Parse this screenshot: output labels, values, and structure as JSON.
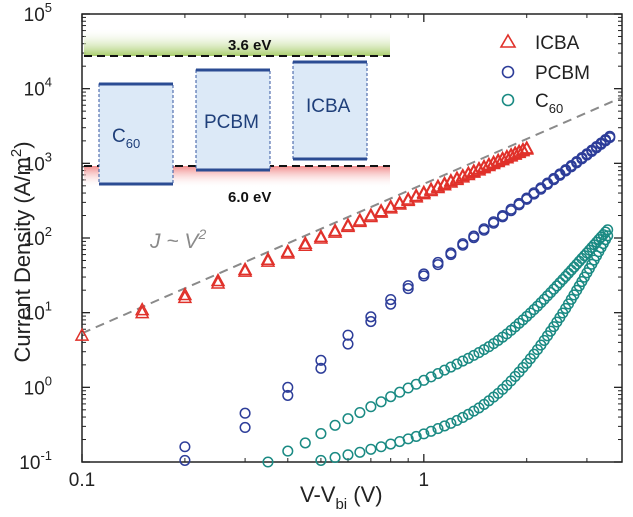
{
  "chart_data": {
    "type": "scatter",
    "xscale": "log",
    "yscale": "log",
    "xlim": [
      0.1,
      3.8
    ],
    "ylim": [
      0.1,
      100000
    ],
    "xlabel_main": "V-V",
    "xlabel_sub": "bi",
    "xlabel_tail": " (V)",
    "ylabel_main": "Current Density (A/m",
    "ylabel_sup": "2",
    "ylabel_tail": ")",
    "x_ticks": [
      {
        "value": 0.1,
        "label": "0.1"
      },
      {
        "value": 1,
        "label": "1"
      }
    ],
    "y_ticks": [
      {
        "value": 0.1,
        "base": "10",
        "exp": "-1"
      },
      {
        "value": 1,
        "base": "10",
        "exp": "0"
      },
      {
        "value": 10,
        "base": "10",
        "exp": "1"
      },
      {
        "value": 100,
        "base": "10",
        "exp": "2"
      },
      {
        "value": 1000,
        "base": "10",
        "exp": "3"
      },
      {
        "value": 10000,
        "base": "10",
        "exp": "4"
      },
      {
        "value": 100000,
        "base": "10",
        "exp": "5"
      }
    ],
    "legend_position": "top-right",
    "series": [
      {
        "name": "ICBA",
        "name_sub": "",
        "marker": "triangle",
        "color": "#e0312a",
        "points": [
          [
            0.1,
            5.0
          ],
          [
            0.15,
            11.0
          ],
          [
            0.15,
            10.0
          ],
          [
            0.2,
            17.5
          ],
          [
            0.2,
            16.0
          ],
          [
            0.25,
            27.0
          ],
          [
            0.25,
            25.0
          ],
          [
            0.3,
            38.0
          ],
          [
            0.3,
            36.0
          ],
          [
            0.35,
            52.0
          ],
          [
            0.35,
            49.0
          ],
          [
            0.4,
            66.0
          ],
          [
            0.4,
            63.0
          ],
          [
            0.45,
            85.0
          ],
          [
            0.45,
            80.0
          ],
          [
            0.5,
            105.0
          ],
          [
            0.5,
            100.0
          ],
          [
            0.55,
            126.0
          ],
          [
            0.55,
            120.0
          ],
          [
            0.6,
            150.0
          ],
          [
            0.6,
            143.0
          ],
          [
            0.65,
            174.0
          ],
          [
            0.65,
            167.0
          ],
          [
            0.7,
            203.0
          ],
          [
            0.7,
            194.0
          ],
          [
            0.75,
            232.0
          ],
          [
            0.75,
            222.0
          ],
          [
            0.8,
            264.0
          ],
          [
            0.8,
            253.0
          ],
          [
            0.85,
            298.0
          ],
          [
            0.85,
            285.0
          ],
          [
            0.9,
            333.0
          ],
          [
            0.9,
            319.0
          ],
          [
            0.95,
            371.0
          ],
          [
            0.95,
            355.0
          ],
          [
            1.0,
            410.0
          ],
          [
            1.0,
            393.0
          ],
          [
            1.05,
            452.0
          ],
          [
            1.05,
            433.0
          ],
          [
            1.1,
            495.0
          ],
          [
            1.1,
            474.0
          ],
          [
            1.15,
            540.0
          ],
          [
            1.15,
            517.0
          ],
          [
            1.2,
            587.0
          ],
          [
            1.2,
            563.0
          ],
          [
            1.25,
            636.0
          ],
          [
            1.25,
            610.0
          ],
          [
            1.3,
            687.0
          ],
          [
            1.3,
            659.0
          ],
          [
            1.35,
            740.0
          ],
          [
            1.35,
            710.0
          ],
          [
            1.4,
            795.0
          ],
          [
            1.4,
            763.0
          ],
          [
            1.45,
            852.0
          ],
          [
            1.45,
            818.0
          ],
          [
            1.5,
            911.0
          ],
          [
            1.5,
            875.0
          ],
          [
            1.55,
            972.0
          ],
          [
            1.55,
            934.0
          ],
          [
            1.6,
            1035.0
          ],
          [
            1.6,
            995.0
          ],
          [
            1.65,
            1100.0
          ],
          [
            1.65,
            1058.0
          ],
          [
            1.7,
            1167.0
          ],
          [
            1.7,
            1123.0
          ],
          [
            1.75,
            1236.0
          ],
          [
            1.75,
            1190.0
          ],
          [
            1.8,
            1307.0
          ],
          [
            1.8,
            1259.0
          ],
          [
            1.85,
            1380.0
          ],
          [
            1.85,
            1330.0
          ],
          [
            1.9,
            1455.0
          ],
          [
            1.9,
            1402.0
          ],
          [
            1.95,
            1532.0
          ],
          [
            1.95,
            1477.0
          ],
          [
            2.0,
            1610.0
          ],
          [
            2.0,
            1553.0
          ]
        ]
      },
      {
        "name": "PCBM",
        "name_sub": "",
        "marker": "circle",
        "color": "#2d3d99",
        "points": [
          [
            0.2,
            0.16
          ],
          [
            0.2,
            0.105
          ],
          [
            0.3,
            0.45
          ],
          [
            0.3,
            0.29
          ],
          [
            0.4,
            1.0
          ],
          [
            0.4,
            0.78
          ],
          [
            0.5,
            2.3
          ],
          [
            0.5,
            1.8
          ],
          [
            0.6,
            5.0
          ],
          [
            0.6,
            3.8
          ],
          [
            0.7,
            8.8
          ],
          [
            0.7,
            7.6
          ],
          [
            0.8,
            15.0
          ],
          [
            0.8,
            13.0
          ],
          [
            0.9,
            23.0
          ],
          [
            0.9,
            21.0
          ],
          [
            1.0,
            33.0
          ],
          [
            1.0,
            31.0
          ],
          [
            1.1,
            47.0
          ],
          [
            1.1,
            44.0
          ],
          [
            1.2,
            63.0
          ],
          [
            1.2,
            60.0
          ],
          [
            1.3,
            84.0
          ],
          [
            1.3,
            80.0
          ],
          [
            1.4,
            106.0
          ],
          [
            1.4,
            101.0
          ],
          [
            1.5,
            133.0
          ],
          [
            1.5,
            127.0
          ],
          [
            1.6,
            165.0
          ],
          [
            1.6,
            158.0
          ],
          [
            1.7,
            200.0
          ],
          [
            1.7,
            192.0
          ],
          [
            1.8,
            243.0
          ],
          [
            1.8,
            232.0
          ],
          [
            1.9,
            290.0
          ],
          [
            1.9,
            278.0
          ],
          [
            2.0,
            343.0
          ],
          [
            2.0,
            329.0
          ],
          [
            2.1,
            403.0
          ],
          [
            2.1,
            387.0
          ],
          [
            2.2,
            470.0
          ],
          [
            2.2,
            451.0
          ],
          [
            2.3,
            545.0
          ],
          [
            2.3,
            523.0
          ],
          [
            2.4,
            628.0
          ],
          [
            2.4,
            603.0
          ],
          [
            2.5,
            720.0
          ],
          [
            2.5,
            692.0
          ],
          [
            2.6,
            822.0
          ],
          [
            2.6,
            790.0
          ],
          [
            2.7,
            934.0
          ],
          [
            2.7,
            898.0
          ],
          [
            2.8,
            1058.0
          ],
          [
            2.8,
            1017.0
          ],
          [
            2.9,
            1193.0
          ],
          [
            2.9,
            1147.0
          ],
          [
            3.0,
            1340.0
          ],
          [
            3.0,
            1290.0
          ],
          [
            3.1,
            1500.0
          ],
          [
            3.1,
            1445.0
          ],
          [
            3.2,
            1680.0
          ],
          [
            3.2,
            1615.0
          ],
          [
            3.3,
            1870.0
          ],
          [
            3.3,
            1800.0
          ],
          [
            3.4,
            2080.0
          ],
          [
            3.4,
            2000.0
          ],
          [
            3.5,
            2300.0
          ],
          [
            3.5,
            2210.0
          ]
        ]
      },
      {
        "name": "C",
        "name_sub": "60",
        "marker": "circle",
        "color": "#1a8a83",
        "points": [
          [
            0.35,
            0.1
          ],
          [
            0.4,
            0.14
          ],
          [
            0.45,
            0.18
          ],
          [
            0.5,
            0.24
          ],
          [
            0.55,
            0.31
          ],
          [
            0.6,
            0.38
          ],
          [
            0.65,
            0.46
          ],
          [
            0.7,
            0.55
          ],
          [
            0.75,
            0.64
          ],
          [
            0.8,
            0.75
          ],
          [
            0.85,
            0.86
          ],
          [
            0.9,
            0.98
          ],
          [
            0.95,
            1.1
          ],
          [
            1.0,
            1.24
          ],
          [
            1.05,
            1.38
          ],
          [
            1.1,
            1.53
          ],
          [
            1.15,
            1.7
          ],
          [
            1.2,
            1.87
          ],
          [
            1.25,
            2.05
          ],
          [
            1.3,
            2.25
          ],
          [
            1.35,
            2.45
          ],
          [
            1.4,
            2.68
          ],
          [
            1.45,
            2.92
          ],
          [
            1.5,
            3.2
          ],
          [
            1.55,
            3.5
          ],
          [
            1.6,
            3.85
          ],
          [
            1.65,
            4.25
          ],
          [
            1.7,
            4.7
          ],
          [
            1.75,
            5.2
          ],
          [
            1.8,
            5.8
          ],
          [
            1.85,
            6.45
          ],
          [
            1.9,
            7.2
          ],
          [
            1.95,
            8.0
          ],
          [
            2.0,
            8.9
          ],
          [
            2.05,
            9.9
          ],
          [
            2.1,
            11.0
          ],
          [
            2.15,
            12.2
          ],
          [
            2.2,
            13.6
          ],
          [
            2.25,
            15.1
          ],
          [
            2.3,
            16.8
          ],
          [
            2.35,
            18.6
          ],
          [
            2.4,
            20.6
          ],
          [
            2.45,
            22.8
          ],
          [
            2.5,
            25.2
          ],
          [
            2.55,
            27.8
          ],
          [
            2.6,
            30.6
          ],
          [
            2.65,
            33.7
          ],
          [
            2.7,
            37.0
          ],
          [
            2.75,
            40.6
          ],
          [
            2.8,
            44.5
          ],
          [
            2.85,
            48.7
          ],
          [
            2.9,
            53.2
          ],
          [
            2.95,
            58.0
          ],
          [
            3.0,
            63.2
          ],
          [
            3.05,
            68.8
          ],
          [
            3.1,
            74.8
          ],
          [
            3.15,
            81.2
          ],
          [
            3.2,
            88.0
          ],
          [
            3.25,
            95.3
          ],
          [
            3.3,
            103.0
          ],
          [
            3.35,
            111.0
          ],
          [
            3.4,
            120.0
          ],
          [
            3.45,
            129.0
          ],
          [
            0.5,
            0.105
          ],
          [
            0.55,
            0.115
          ],
          [
            0.6,
            0.125
          ],
          [
            0.65,
            0.135
          ],
          [
            0.7,
            0.148
          ],
          [
            0.75,
            0.16
          ],
          [
            0.8,
            0.174
          ],
          [
            0.85,
            0.188
          ],
          [
            0.9,
            0.204
          ],
          [
            0.95,
            0.22
          ],
          [
            1.0,
            0.238
          ],
          [
            1.05,
            0.258
          ],
          [
            1.1,
            0.28
          ],
          [
            1.15,
            0.304
          ],
          [
            1.2,
            0.33
          ],
          [
            1.25,
            0.36
          ],
          [
            1.3,
            0.395
          ],
          [
            1.35,
            0.435
          ],
          [
            1.4,
            0.48
          ],
          [
            1.45,
            0.53
          ],
          [
            1.5,
            0.59
          ],
          [
            1.55,
            0.66
          ],
          [
            1.6,
            0.74
          ],
          [
            1.65,
            0.83
          ],
          [
            1.7,
            0.94
          ],
          [
            1.75,
            1.07
          ],
          [
            1.8,
            1.22
          ],
          [
            1.85,
            1.4
          ],
          [
            1.9,
            1.6
          ],
          [
            1.95,
            1.84
          ],
          [
            2.0,
            2.1
          ],
          [
            2.05,
            2.42
          ],
          [
            2.1,
            2.78
          ],
          [
            2.15,
            3.2
          ],
          [
            2.2,
            3.68
          ],
          [
            2.25,
            4.25
          ],
          [
            2.3,
            4.9
          ],
          [
            2.35,
            5.65
          ],
          [
            2.4,
            6.5
          ],
          [
            2.45,
            7.5
          ],
          [
            2.5,
            8.6
          ],
          [
            2.55,
            9.9
          ],
          [
            2.6,
            11.4
          ],
          [
            2.65,
            13.1
          ],
          [
            2.7,
            15.1
          ],
          [
            2.75,
            17.3
          ],
          [
            2.8,
            19.9
          ],
          [
            2.85,
            22.8
          ],
          [
            2.9,
            26.1
          ],
          [
            2.95,
            29.9
          ],
          [
            3.0,
            34.2
          ],
          [
            3.05,
            39.0
          ],
          [
            3.1,
            44.5
          ],
          [
            3.15,
            50.7
          ],
          [
            3.2,
            57.7
          ],
          [
            3.25,
            65.5
          ],
          [
            3.3,
            74.3
          ],
          [
            3.35,
            84.1
          ],
          [
            3.4,
            95.0
          ],
          [
            3.45,
            107.0
          ]
        ]
      }
    ],
    "fit_line": {
      "label_main": "J ~ V",
      "label_sup": "2",
      "color": "#8a8a8a",
      "from": [
        0.1,
        5.3
      ],
      "to": [
        3.8,
        7650.0
      ]
    },
    "inset": {
      "top_level_label": "3.6 eV",
      "bottom_level_label": "6.0 eV",
      "materials": [
        {
          "name": "C",
          "sub": "60"
        },
        {
          "name": "PCBM",
          "sub": ""
        },
        {
          "name": "ICBA",
          "sub": ""
        }
      ]
    }
  }
}
